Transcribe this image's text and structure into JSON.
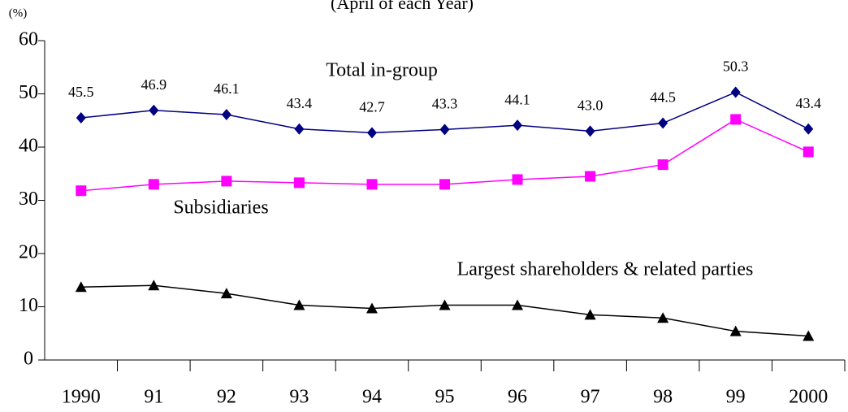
{
  "chart_data": {
    "type": "line",
    "subtitle": "(April of each Year)",
    "y_unit": "(%)",
    "categories": [
      "1990",
      "91",
      "92",
      "93",
      "94",
      "95",
      "96",
      "97",
      "98",
      "99",
      "2000"
    ],
    "ylim": [
      0,
      60
    ],
    "yticks": [
      0,
      10,
      20,
      30,
      40,
      50,
      60
    ],
    "series": [
      {
        "name": "Total in-group",
        "color": "#000080",
        "marker": "diamond",
        "values": [
          45.5,
          46.9,
          46.1,
          43.4,
          42.7,
          43.3,
          44.1,
          43.0,
          44.5,
          50.3,
          43.4
        ],
        "value_labels": [
          "45.5",
          "46.9",
          "46.1",
          "43.4",
          "42.7",
          "43.3",
          "44.1",
          "43.0",
          "44.5",
          "50.3",
          "43.4"
        ]
      },
      {
        "name": "Subsidiaries",
        "color": "#ff00ff",
        "marker": "square",
        "values": [
          31.8,
          33.0,
          33.6,
          33.3,
          33.0,
          33.0,
          33.9,
          34.5,
          36.7,
          45.2,
          39.1
        ]
      },
      {
        "name": "Largest shareholders & related parties",
        "color": "#000000",
        "marker": "triangle",
        "values": [
          13.7,
          14.0,
          12.5,
          10.3,
          9.7,
          10.3,
          10.3,
          8.5,
          7.9,
          5.4,
          4.5
        ]
      }
    ]
  }
}
